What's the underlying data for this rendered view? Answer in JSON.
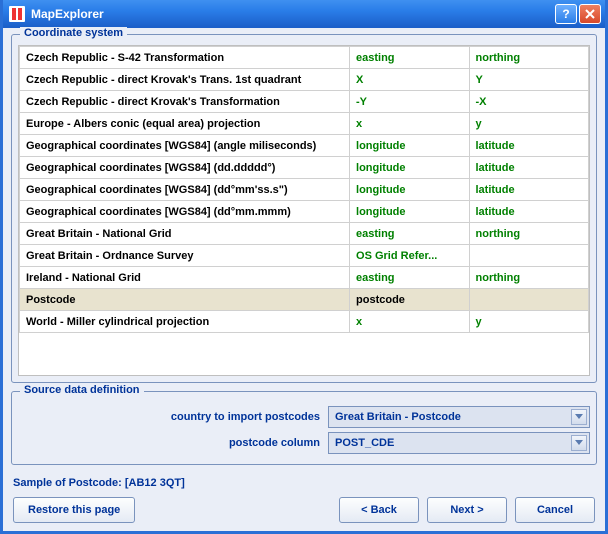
{
  "window": {
    "title": "MapExplorer"
  },
  "cs_group": {
    "legend": "Coordinate system"
  },
  "table": {
    "rows": [
      {
        "name": "Czech Republic - S-42 Transformation",
        "col1": "easting",
        "col2": "northing",
        "selected": false
      },
      {
        "name": "Czech Republic - direct Krovak's Trans. 1st quadrant",
        "col1": "X",
        "col2": "Y",
        "selected": false
      },
      {
        "name": "Czech Republic - direct Krovak's Transformation",
        "col1": "-Y",
        "col2": "-X",
        "selected": false
      },
      {
        "name": "Europe - Albers conic (equal area) projection",
        "col1": "x",
        "col2": "y",
        "selected": false
      },
      {
        "name": "Geographical coordinates [WGS84] (angle miliseconds)",
        "col1": "longitude",
        "col2": "latitude",
        "selected": false
      },
      {
        "name": "Geographical coordinates [WGS84] (dd.ddddd°)",
        "col1": "longitude",
        "col2": "latitude",
        "selected": false
      },
      {
        "name": "Geographical coordinates [WGS84] (dd°mm'ss.s\")",
        "col1": "longitude",
        "col2": "latitude",
        "selected": false
      },
      {
        "name": "Geographical coordinates [WGS84] (dd°mm.mmm)",
        "col1": "longitude",
        "col2": "latitude",
        "selected": false
      },
      {
        "name": "Great Britain - National Grid",
        "col1": "easting",
        "col2": "northing",
        "selected": false
      },
      {
        "name": "Great Britain - Ordnance Survey",
        "col1": "OS Grid Refer...",
        "col2": "",
        "selected": false
      },
      {
        "name": "Ireland - National Grid",
        "col1": "easting",
        "col2": "northing",
        "selected": false
      },
      {
        "name": "Postcode",
        "col1": "postcode",
        "col2": "",
        "selected": true
      },
      {
        "name": "World - Miller cylindrical projection",
        "col1": "x",
        "col2": "y",
        "selected": false
      }
    ]
  },
  "sdd_group": {
    "legend": "Source data definition",
    "country_label": "country to import postcodes",
    "country_value": "Great Britain - Postcode",
    "column_label": "postcode column",
    "column_value": "POST_CDE"
  },
  "sample_line": "Sample of Postcode: [AB12 3QT]",
  "buttons": {
    "restore": "Restore this page",
    "back": "< Back",
    "next": "Next >",
    "cancel": "Cancel"
  }
}
